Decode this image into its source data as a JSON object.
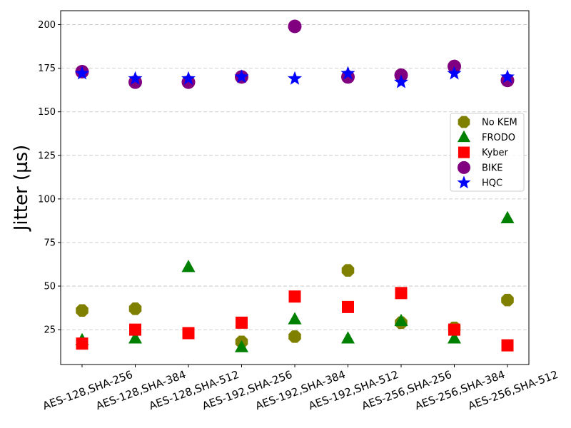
{
  "chart_data": {
    "type": "scatter",
    "title": "",
    "xlabel": "",
    "ylabel": "Jitter (µs)",
    "categories": [
      "AES-128,SHA-256",
      "AES-128,SHA-384",
      "AES-128,SHA-512",
      "AES-192,SHA-256",
      "AES-192,SHA-384",
      "AES-192,SHA-512",
      "AES-256,SHA-256",
      "AES-256,SHA-384",
      "AES-256,SHA-512"
    ],
    "ylim": [
      5,
      208
    ],
    "yticks": [
      25,
      50,
      75,
      100,
      125,
      150,
      175,
      200
    ],
    "grid": "y-dashed",
    "legend_position": "right",
    "series": [
      {
        "name": "No KEM",
        "marker": "octagon",
        "color": "#808000",
        "values": [
          36,
          37,
          null,
          18,
          21,
          59,
          29,
          26,
          42
        ]
      },
      {
        "name": "FRODO",
        "marker": "triangle",
        "color": "#008000",
        "values": [
          19,
          20,
          61,
          15,
          31,
          20,
          30,
          20,
          89
        ]
      },
      {
        "name": "Kyber",
        "marker": "square",
        "color": "#ff0000",
        "values": [
          17,
          25,
          23,
          29,
          44,
          38,
          46,
          25,
          16
        ]
      },
      {
        "name": "BIKE",
        "marker": "circle",
        "color": "#800080",
        "values": [
          173,
          167,
          167,
          170,
          199,
          170,
          171,
          176,
          168
        ]
      },
      {
        "name": "HQC",
        "marker": "star",
        "color": "#0000ff",
        "values": [
          172,
          169,
          169,
          170,
          169,
          172,
          167,
          172,
          170
        ]
      }
    ]
  }
}
